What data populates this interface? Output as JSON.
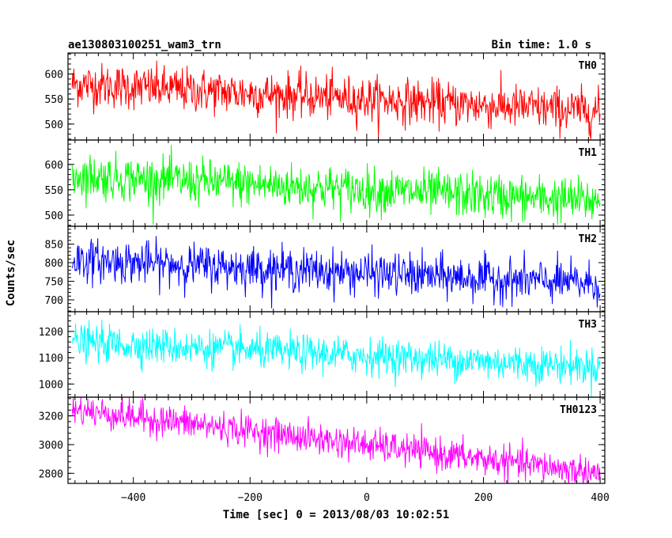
{
  "chart_data": {
    "type": "line",
    "title_left": "ae130803100251_wam3_trn",
    "title_right": "Bin time: 1.0 s",
    "xlabel": "Time [sec] 0 = 2013/08/03 10:02:51",
    "ylabel": "Counts/sec",
    "xlim": [
      -512,
      408
    ],
    "x_range_data": [
      -505,
      400
    ],
    "bin_time": 1.0,
    "x_ticks": [
      -400,
      -200,
      0,
      200,
      400
    ],
    "x_tick_labels": [
      "−400",
      "−200",
      "0",
      "200",
      "400"
    ],
    "grid": false,
    "panels": [
      {
        "name": "TH0",
        "color": "#ff0000",
        "ylim": [
          468,
          642
        ],
        "y_ticks": [
          500,
          550,
          600
        ],
        "trend": {
          "start": 580,
          "end": 525
        },
        "spread": 22
      },
      {
        "name": "TH1",
        "color": "#00ff00",
        "ylim": [
          478,
          648
        ],
        "y_ticks": [
          500,
          550,
          600
        ],
        "trend": {
          "start": 578,
          "end": 527
        },
        "spread": 22
      },
      {
        "name": "TH2",
        "color": "#0000ff",
        "ylim": [
          668,
          898
        ],
        "y_ticks": [
          700,
          750,
          800,
          850
        ],
        "trend": {
          "start": 808,
          "end": 743
        },
        "spread": 28
      },
      {
        "name": "TH3",
        "color": "#00ffff",
        "ylim": [
          950,
          1275
        ],
        "y_ticks": [
          1000,
          1100,
          1200
        ],
        "trend": {
          "start": 1160,
          "end": 1065
        },
        "spread": 34
      },
      {
        "name": "TH0123",
        "color": "#ff00ff",
        "ylim": [
          2730,
          3330
        ],
        "y_ticks": [
          2800,
          3000,
          3200
        ],
        "trend": {
          "start": 3245,
          "end": 2800
        },
        "spread": 55
      }
    ]
  }
}
